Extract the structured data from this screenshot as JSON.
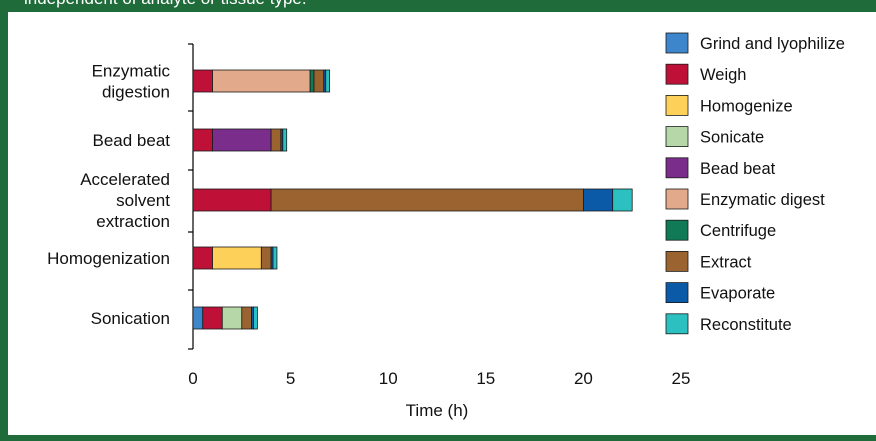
{
  "header": {
    "caption": "independent of analyte or tissue type."
  },
  "chart_data": {
    "type": "bar",
    "orientation": "horizontal",
    "stacked": true,
    "xlabel": "Time (h)",
    "xlim": [
      0,
      25
    ],
    "xticks": [
      0,
      5,
      10,
      15,
      20,
      25
    ],
    "grid": false,
    "legend_position": "right",
    "categories": [
      {
        "label_lines": [
          "Enzymatic",
          "digestion"
        ]
      },
      {
        "label_lines": [
          "Bead beat"
        ]
      },
      {
        "label_lines": [
          "Accelerated",
          "solvent",
          "extraction"
        ]
      },
      {
        "label_lines": [
          "Homogenization"
        ]
      },
      {
        "label_lines": [
          "Sonication"
        ]
      }
    ],
    "series": [
      {
        "name": "Grind and lyophilize",
        "color": "#3d86cc",
        "values": [
          0,
          0,
          0,
          0,
          0.5
        ]
      },
      {
        "name": "Weigh",
        "color": "#bf1138",
        "values": [
          1,
          1,
          4,
          1,
          1
        ]
      },
      {
        "name": "Homogenize",
        "color": "#fdd05a",
        "values": [
          0,
          0,
          0,
          2.5,
          0
        ]
      },
      {
        "name": "Sonicate",
        "color": "#b6d7a8",
        "values": [
          0,
          0,
          0,
          0,
          1
        ]
      },
      {
        "name": "Bead beat",
        "color": "#7b2d8b",
        "values": [
          0,
          3,
          0,
          0,
          0
        ]
      },
      {
        "name": "Enzymatic digest",
        "color": "#e2a98a",
        "values": [
          5,
          0,
          0,
          0,
          0
        ]
      },
      {
        "name": "Centrifuge",
        "color": "#0f7a55",
        "values": [
          0.2,
          0,
          0,
          0,
          0
        ]
      },
      {
        "name": "Extract",
        "color": "#9a6330",
        "values": [
          0.5,
          0.5,
          16,
          0.5,
          0.5
        ]
      },
      {
        "name": "Evaporate",
        "color": "#0a5aa8",
        "values": [
          0.1,
          0.1,
          1.5,
          0.1,
          0.1
        ]
      },
      {
        "name": "Reconstitute",
        "color": "#2cc0c0",
        "values": [
          0.2,
          0.2,
          1,
          0.2,
          0.2
        ]
      }
    ]
  }
}
